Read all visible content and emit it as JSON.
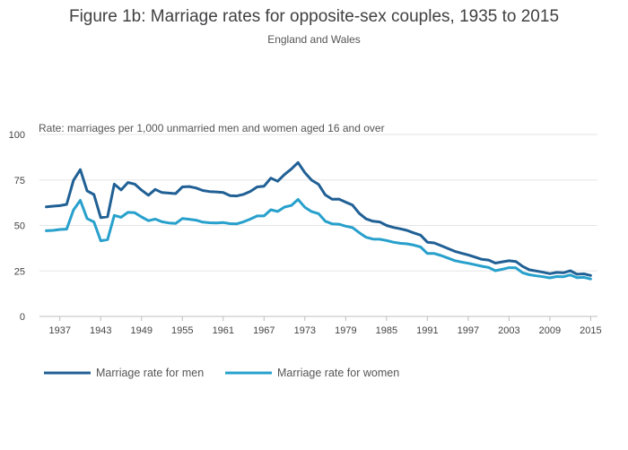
{
  "chart_data": {
    "type": "line",
    "title": "Figure 1b: Marriage rates for opposite-sex couples, 1935 to 2015",
    "subtitle": "England and Wales",
    "ylabel": "Rate: marriages per 1,000 unmarried men and women aged 16 and over",
    "xlabel": "",
    "x": [
      1935,
      1936,
      1937,
      1938,
      1939,
      1940,
      1941,
      1942,
      1943,
      1944,
      1945,
      1946,
      1947,
      1948,
      1949,
      1950,
      1951,
      1952,
      1953,
      1954,
      1955,
      1956,
      1957,
      1958,
      1959,
      1960,
      1961,
      1962,
      1963,
      1964,
      1965,
      1966,
      1967,
      1968,
      1969,
      1970,
      1971,
      1972,
      1973,
      1974,
      1975,
      1976,
      1977,
      1978,
      1979,
      1980,
      1981,
      1982,
      1983,
      1984,
      1985,
      1986,
      1987,
      1988,
      1989,
      1990,
      1991,
      1992,
      1993,
      1994,
      1995,
      1996,
      1997,
      1998,
      1999,
      2000,
      2001,
      2002,
      2003,
      2004,
      2005,
      2006,
      2007,
      2008,
      2009,
      2010,
      2011,
      2012,
      2013,
      2014,
      2015
    ],
    "xticks": [
      1937,
      1943,
      1949,
      1955,
      1961,
      1967,
      1973,
      1979,
      1985,
      1991,
      1997,
      2003,
      2009,
      2015
    ],
    "xlim": [
      1934,
      2016
    ],
    "ylim": [
      0,
      100
    ],
    "yticks": [
      0,
      25,
      50,
      75,
      100
    ],
    "grid": true,
    "legend_position": "bottom-left",
    "series": [
      {
        "name": "Marriage rate for men",
        "color": "#206095",
        "values": [
          60.2,
          60.6,
          60.9,
          61.6,
          74.8,
          80.7,
          69.0,
          67.0,
          54.3,
          54.8,
          72.7,
          69.5,
          73.6,
          72.7,
          69.4,
          66.6,
          69.8,
          68.1,
          67.8,
          67.5,
          71.2,
          71.4,
          70.6,
          69.2,
          68.6,
          68.4,
          68.1,
          66.4,
          66.2,
          67.1,
          68.7,
          71.2,
          71.6,
          76.0,
          74.3,
          78.0,
          81.0,
          84.6,
          79.0,
          74.9,
          72.6,
          66.8,
          64.4,
          64.5,
          62.8,
          61.2,
          56.6,
          53.6,
          52.3,
          51.9,
          50.0,
          48.9,
          48.2,
          47.3,
          45.9,
          44.7,
          40.8,
          40.4,
          38.9,
          37.4,
          35.8,
          34.8,
          33.8,
          32.6,
          31.4,
          31.0,
          29.3,
          30.0,
          30.6,
          30.2,
          27.5,
          25.6,
          25.0,
          24.3,
          23.5,
          24.2,
          24.0,
          25.1,
          23.2,
          23.4,
          22.5
        ]
      },
      {
        "name": "Marriage rate for women",
        "color": "#27a0cc",
        "values": [
          47.1,
          47.3,
          47.8,
          48.0,
          58.5,
          63.8,
          53.8,
          51.9,
          41.6,
          42.2,
          55.5,
          54.5,
          57.2,
          57.0,
          54.7,
          52.6,
          53.5,
          52.0,
          51.4,
          51.1,
          53.8,
          53.4,
          52.9,
          51.8,
          51.5,
          51.4,
          51.6,
          51.0,
          50.9,
          52.0,
          53.5,
          55.2,
          55.2,
          58.6,
          57.7,
          60.1,
          61.0,
          64.3,
          60.0,
          57.6,
          56.5,
          52.3,
          50.9,
          50.7,
          49.6,
          48.8,
          46.0,
          43.5,
          42.5,
          42.4,
          41.7,
          40.8,
          40.2,
          39.9,
          39.2,
          38.2,
          34.6,
          34.6,
          33.5,
          32.1,
          30.7,
          29.9,
          29.2,
          28.4,
          27.6,
          26.9,
          25.1,
          25.9,
          26.8,
          26.7,
          24.0,
          22.9,
          22.3,
          21.8,
          21.2,
          21.9,
          21.8,
          22.8,
          21.3,
          21.5,
          20.6
        ]
      }
    ]
  }
}
